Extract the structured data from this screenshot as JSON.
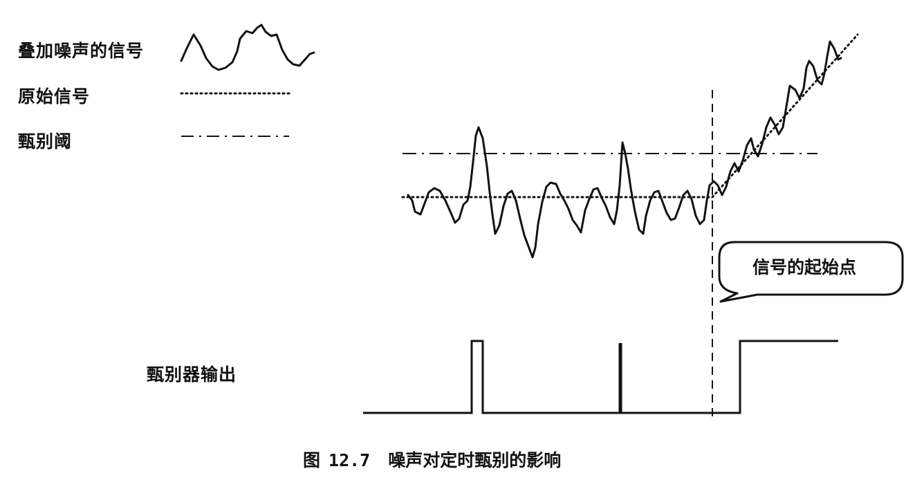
{
  "legend": {
    "noisy_signal": "叠加噪声的信号",
    "original_signal": "原始信号",
    "threshold": "甄别阈"
  },
  "discriminator_output_label": "甄别器输出",
  "callout": "信号的起始点",
  "caption": {
    "prefix": "图",
    "number": "12.7",
    "title": "噪声对定时甄别的影响"
  },
  "colors": {
    "ink": "#111111",
    "background": "#ffffff"
  }
}
